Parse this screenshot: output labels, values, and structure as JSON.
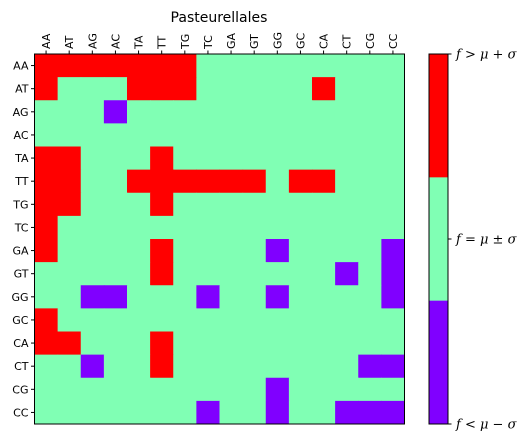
{
  "chart_data": {
    "type": "heatmap",
    "title": "Pasteurellales",
    "x_categories": [
      "AA",
      "AT",
      "AG",
      "AC",
      "TA",
      "TT",
      "TG",
      "TC",
      "GA",
      "GT",
      "GG",
      "GC",
      "CA",
      "CT",
      "CG",
      "CC"
    ],
    "y_categories": [
      "AA",
      "AT",
      "AG",
      "AC",
      "TA",
      "TT",
      "TG",
      "TC",
      "GA",
      "GT",
      "GG",
      "GC",
      "CA",
      "CT",
      "CG",
      "CC"
    ],
    "value_encoding": {
      "1": "f > μ + σ",
      "0": "f = μ ± σ",
      "-1": "f < μ − σ"
    },
    "values": [
      [
        1,
        1,
        1,
        1,
        1,
        1,
        1,
        0,
        0,
        0,
        0,
        0,
        0,
        0,
        0,
        0
      ],
      [
        1,
        0,
        0,
        0,
        1,
        1,
        1,
        0,
        0,
        0,
        0,
        0,
        1,
        0,
        0,
        0
      ],
      [
        0,
        0,
        0,
        -1,
        0,
        0,
        0,
        0,
        0,
        0,
        0,
        0,
        0,
        0,
        0,
        0
      ],
      [
        0,
        0,
        0,
        0,
        0,
        0,
        0,
        0,
        0,
        0,
        0,
        0,
        0,
        0,
        0,
        0
      ],
      [
        1,
        1,
        0,
        0,
        0,
        1,
        0,
        0,
        0,
        0,
        0,
        0,
        0,
        0,
        0,
        0
      ],
      [
        1,
        1,
        0,
        0,
        1,
        1,
        1,
        1,
        1,
        1,
        0,
        1,
        1,
        0,
        0,
        0
      ],
      [
        1,
        1,
        0,
        0,
        0,
        1,
        0,
        0,
        0,
        0,
        0,
        0,
        0,
        0,
        0,
        0
      ],
      [
        1,
        0,
        0,
        0,
        0,
        0,
        0,
        0,
        0,
        0,
        0,
        0,
        0,
        0,
        0,
        0
      ],
      [
        1,
        0,
        0,
        0,
        0,
        1,
        0,
        0,
        0,
        0,
        -1,
        0,
        0,
        0,
        0,
        -1
      ],
      [
        0,
        0,
        0,
        0,
        0,
        1,
        0,
        0,
        0,
        0,
        0,
        0,
        0,
        -1,
        0,
        -1
      ],
      [
        0,
        0,
        -1,
        -1,
        0,
        0,
        0,
        -1,
        0,
        0,
        -1,
        0,
        0,
        0,
        0,
        -1
      ],
      [
        1,
        0,
        0,
        0,
        0,
        0,
        0,
        0,
        0,
        0,
        0,
        0,
        0,
        0,
        0,
        0
      ],
      [
        1,
        1,
        0,
        0,
        0,
        1,
        0,
        0,
        0,
        0,
        0,
        0,
        0,
        0,
        0,
        0
      ],
      [
        0,
        0,
        -1,
        0,
        0,
        1,
        0,
        0,
        0,
        0,
        0,
        0,
        0,
        0,
        -1,
        -1
      ],
      [
        0,
        0,
        0,
        0,
        0,
        0,
        0,
        0,
        0,
        0,
        -1,
        0,
        0,
        0,
        0,
        0
      ],
      [
        0,
        0,
        0,
        0,
        0,
        0,
        0,
        -1,
        0,
        0,
        -1,
        0,
        0,
        -1,
        -1,
        -1
      ]
    ],
    "colors": {
      "high": "#ff0000",
      "mid": "#80ffb4",
      "low": "#8000ff"
    },
    "colorbar": {
      "labels": [
        "f > μ + σ",
        "f = μ ± σ",
        "f < μ − σ"
      ]
    },
    "grid": false,
    "legend": "colorbar-right"
  }
}
